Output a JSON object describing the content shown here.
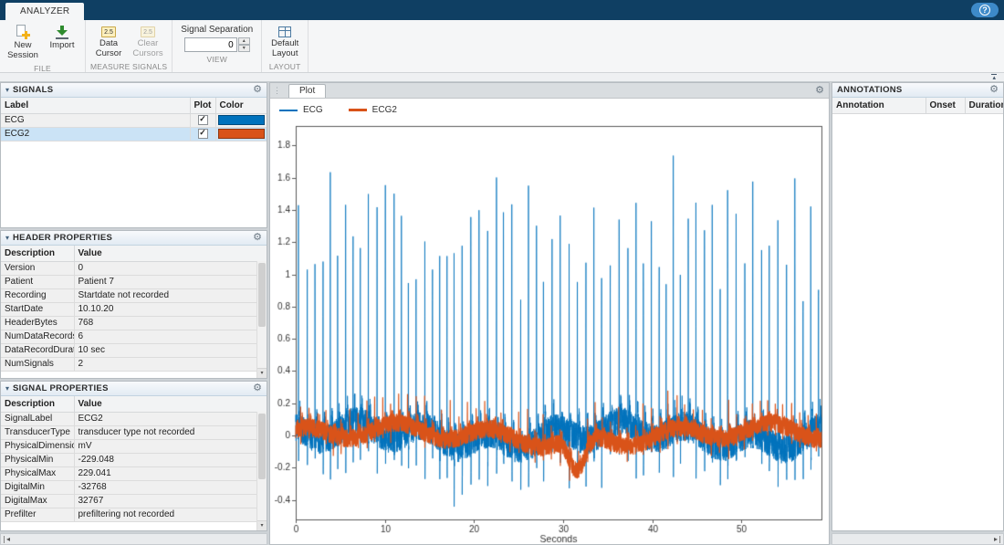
{
  "titlebar": {
    "tab": "ANALYZER"
  },
  "icons": {
    "help": "?",
    "gear": "⚙",
    "collapse": "▾",
    "grip": "⋮",
    "scroll_left": "◂",
    "scroll_right": "▸",
    "spin_up": "▴",
    "spin_down": "▾",
    "collapse_toolstrip": "▴",
    "scroll_down": "▾",
    "check": "✓",
    "data_cursor_badge": "2.5",
    "clear_cursors_badge": "2.5"
  },
  "toolbar": {
    "file": {
      "label": "FILE",
      "new_session": "New Session",
      "import": "Import"
    },
    "measure": {
      "label": "MEASURE SIGNALS",
      "data_cursor": "Data Cursor",
      "clear_cursors": "Clear Cursors"
    },
    "view": {
      "label": "VIEW",
      "signal_separation": "Signal Separation",
      "value": "0"
    },
    "layout": {
      "label": "LAYOUT",
      "default_layout": "Default Layout"
    }
  },
  "signals_panel": {
    "title": "SIGNALS",
    "columns": [
      "Label",
      "Plot",
      "Color"
    ],
    "rows": [
      {
        "label": "ECG",
        "plot": true,
        "color": "#0072BD",
        "selected": false
      },
      {
        "label": "ECG2",
        "plot": true,
        "color": "#D95319",
        "selected": true
      }
    ]
  },
  "header_properties": {
    "title": "HEADER PROPERTIES",
    "columns": [
      "Description",
      "Value"
    ],
    "rows": [
      [
        "Version",
        "0"
      ],
      [
        "Patient",
        "Patient 7"
      ],
      [
        "Recording",
        "Startdate not recorded"
      ],
      [
        "StartDate",
        "10.10.20"
      ],
      [
        "HeaderBytes",
        "768"
      ],
      [
        "NumDataRecords",
        "6"
      ],
      [
        "DataRecordDuration",
        "10 sec"
      ],
      [
        "NumSignals",
        "2"
      ]
    ]
  },
  "signal_properties": {
    "title": "SIGNAL PROPERTIES",
    "columns": [
      "Description",
      "Value"
    ],
    "rows": [
      [
        "SignalLabel",
        "ECG2"
      ],
      [
        "TransducerType",
        "transducer type not recorded"
      ],
      [
        "PhysicalDimension",
        "mV"
      ],
      [
        "PhysicalMin",
        "-229.048"
      ],
      [
        "PhysicalMax",
        "229.041"
      ],
      [
        "DigitalMin",
        "-32768"
      ],
      [
        "DigitalMax",
        "32767"
      ],
      [
        "Prefilter",
        "prefiltering not recorded"
      ]
    ]
  },
  "plot_panel": {
    "tab": "Plot"
  },
  "annotations_panel": {
    "title": "ANNOTATIONS",
    "columns": [
      "Annotation",
      "Onset",
      "Duration"
    ]
  },
  "chart_data": {
    "type": "line",
    "title": "",
    "xlabel": "Seconds",
    "ylabel": "",
    "xlim": [
      0,
      59
    ],
    "ylim": [
      -0.52,
      1.92
    ],
    "xticks": [
      0,
      10,
      20,
      30,
      40,
      50
    ],
    "yticks": [
      -0.4,
      -0.2,
      0,
      0.2,
      0.4,
      0.6,
      0.8,
      1,
      1.2,
      1.4,
      1.6,
      1.8
    ],
    "grid": false,
    "legend_position": "top-left",
    "duration": 59,
    "series": [
      {
        "name": "ECG",
        "color": "#0072BD",
        "width": 0.8,
        "seed": 7,
        "first_beat": 0.3,
        "beat_base": 0.78,
        "beat_jitter": 0.22,
        "spike_min": 1.3,
        "spike_max": 1.8,
        "under_min": 0.15,
        "under_max": 0.32,
        "noise": 0.09,
        "wander1": 0.05,
        "wf1": 0.85,
        "wp1": 2,
        "wander2": 0.04,
        "wf2": 0.21,
        "twave": 0.1
      },
      {
        "name": "ECG2",
        "color": "#D95319",
        "width": 1.2,
        "seed": 99,
        "first_beat": 0.55,
        "beat_base": 0.8,
        "beat_jitter": 0.25,
        "spike_min": 0.1,
        "spike_max": 0.26,
        "under_min": 0.04,
        "under_max": 0.1,
        "noise": 0.055,
        "wander1": 0.045,
        "wf1": 0.6,
        "wp1": 1,
        "wander2": 0.035,
        "wf2": 0.15,
        "twave": 0.04,
        "dip_time": 31.6,
        "dip_depth": -0.22,
        "dip_width": 0.9
      }
    ]
  }
}
